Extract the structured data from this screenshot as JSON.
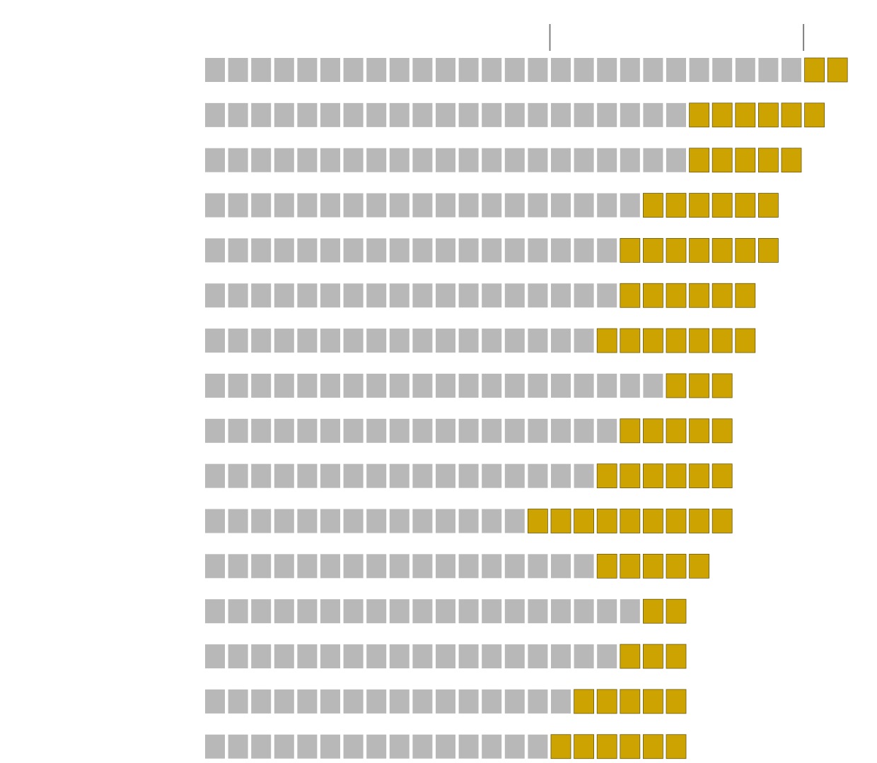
{
  "chart_data": {
    "type": "waffle-row",
    "rows": [
      {
        "gray": 26,
        "gold": 2
      },
      {
        "gray": 21,
        "gold": 6
      },
      {
        "gray": 21,
        "gold": 5
      },
      {
        "gray": 19,
        "gold": 6
      },
      {
        "gray": 18,
        "gold": 7
      },
      {
        "gray": 18,
        "gold": 6
      },
      {
        "gray": 17,
        "gold": 7
      },
      {
        "gray": 20,
        "gold": 3
      },
      {
        "gray": 18,
        "gold": 5
      },
      {
        "gray": 17,
        "gold": 6
      },
      {
        "gray": 14,
        "gold": 9
      },
      {
        "gray": 17,
        "gold": 5
      },
      {
        "gray": 19,
        "gold": 2
      },
      {
        "gray": 18,
        "gold": 3
      },
      {
        "gray": 16,
        "gold": 5
      },
      {
        "gray": 15,
        "gold": 6
      }
    ],
    "reference_ticks": [
      16,
      27
    ],
    "colors": {
      "gray": "#b8b8b8",
      "gold": "#cca300",
      "gold_border": "#6b5a10",
      "tick": "#808080"
    }
  }
}
